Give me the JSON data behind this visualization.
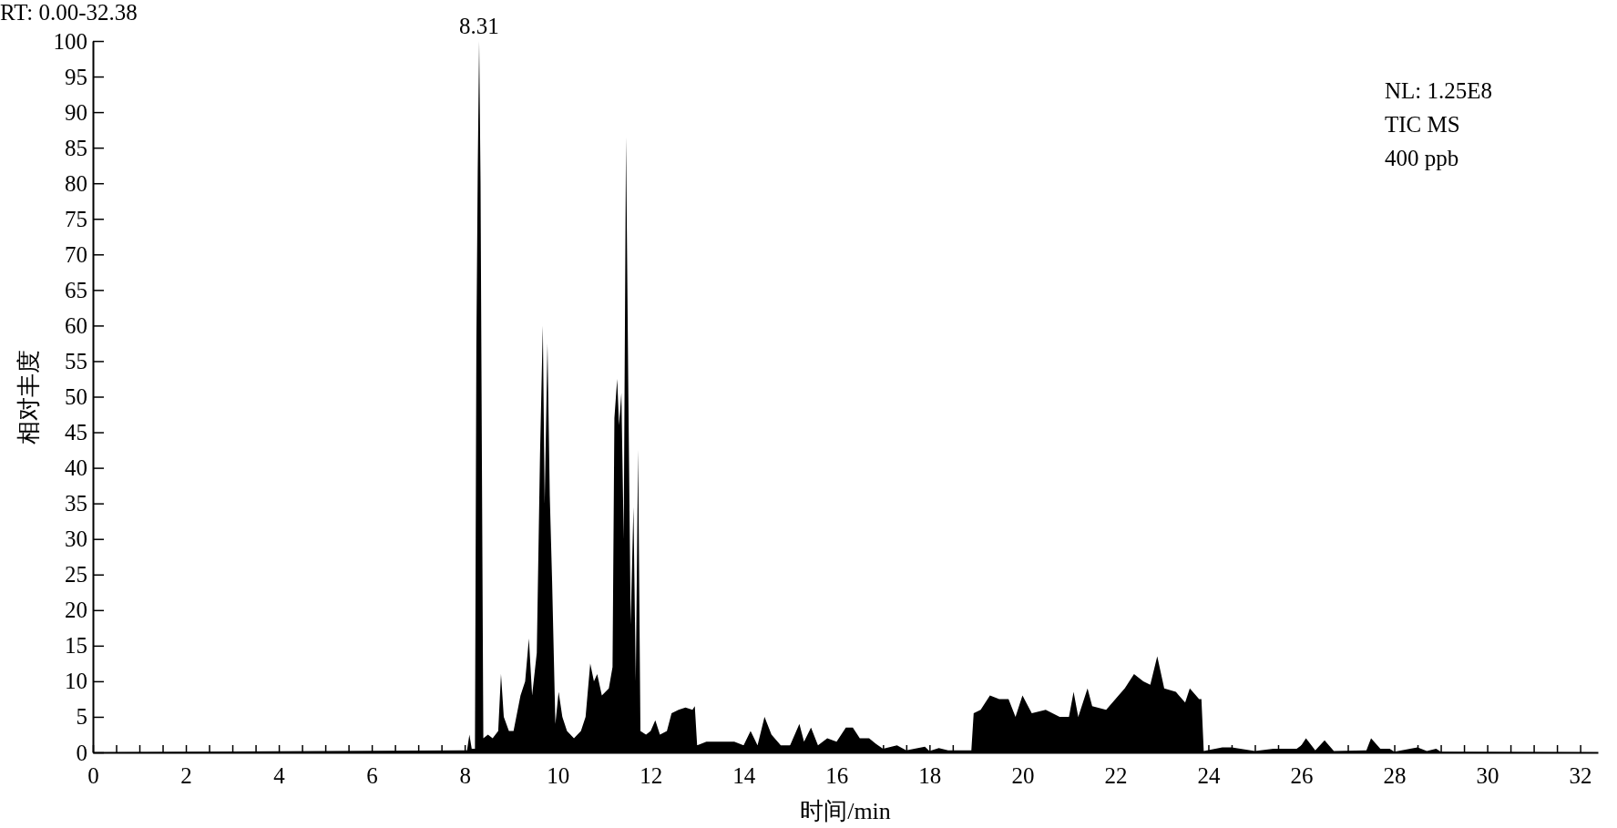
{
  "chart_data": {
    "type": "area",
    "title": "RT: 0.00-32.38",
    "xlabel": "时间/min",
    "ylabel": "相对丰度",
    "annotations": [
      {
        "text": "8.31",
        "x": 8.31,
        "y": 100
      },
      "NL: 1.25E8",
      "TIC  MS",
      "400 ppb"
    ],
    "xlim": [
      0,
      32.38
    ],
    "ylim": [
      0,
      100
    ],
    "xticks": [
      0,
      {
        "value": 0.5,
        "label": null
      },
      {
        "value": 1,
        "label": null
      },
      {
        "value": 1.5,
        "label": null
      },
      2,
      {
        "value": 2.5,
        "label": null
      },
      {
        "value": 3,
        "label": null
      },
      {
        "value": 3.5,
        "label": null
      },
      4,
      {
        "value": 4.5,
        "label": null
      },
      {
        "value": 5,
        "label": null
      },
      {
        "value": 5.5,
        "label": null
      },
      6,
      {
        "value": 6.5,
        "label": null
      },
      {
        "value": 7,
        "label": null
      },
      {
        "value": 7.5,
        "label": null
      },
      8,
      {
        "value": 8.5,
        "label": null
      },
      {
        "value": 9,
        "label": null
      },
      {
        "value": 9.5,
        "label": null
      },
      10,
      {
        "value": 10.5,
        "label": null
      },
      {
        "value": 11,
        "label": null
      },
      {
        "value": 11.5,
        "label": null
      },
      12,
      {
        "value": 12.5,
        "label": null
      },
      {
        "value": 13,
        "label": null
      },
      {
        "value": 13.5,
        "label": null
      },
      14,
      {
        "value": 14.5,
        "label": null
      },
      {
        "value": 15,
        "label": null
      },
      {
        "value": 15.5,
        "label": null
      },
      16,
      {
        "value": 16.5,
        "label": null
      },
      {
        "value": 17,
        "label": null
      },
      {
        "value": 17.5,
        "label": null
      },
      18,
      {
        "value": 18.5,
        "label": null
      },
      {
        "value": 19,
        "label": null
      },
      {
        "value": 19.5,
        "label": null
      },
      20,
      {
        "value": 20.5,
        "label": null
      },
      {
        "value": 21,
        "label": null
      },
      {
        "value": 21.5,
        "label": null
      },
      22,
      {
        "value": 22.5,
        "label": null
      },
      {
        "value": 23,
        "label": null
      },
      {
        "value": 23.5,
        "label": null
      },
      24,
      {
        "value": 24.5,
        "label": null
      },
      {
        "value": 25,
        "label": null
      },
      {
        "value": 25.5,
        "label": null
      },
      26,
      {
        "value": 26.5,
        "label": null
      },
      {
        "value": 27,
        "label": null
      },
      {
        "value": 27.5,
        "label": null
      },
      28,
      {
        "value": 28.5,
        "label": null
      },
      {
        "value": 29,
        "label": null
      },
      {
        "value": 29.5,
        "label": null
      },
      30,
      {
        "value": 30.5,
        "label": null
      },
      {
        "value": 31,
        "label": null
      },
      {
        "value": 31.5,
        "label": null
      },
      32
    ],
    "yticks": [
      0,
      5,
      10,
      15,
      20,
      25,
      30,
      35,
      40,
      45,
      50,
      55,
      60,
      65,
      70,
      75,
      80,
      85,
      90,
      95,
      100
    ],
    "series": [
      {
        "color": "#000000",
        "x": [
          0,
          7.9,
          8.05,
          8.1,
          8.15,
          8.22,
          8.25,
          8.28,
          8.31,
          8.34,
          8.37,
          8.4,
          8.5,
          8.6,
          8.72,
          8.78,
          8.84,
          8.95,
          9.05,
          9.2,
          9.3,
          9.38,
          9.45,
          9.55,
          9.62,
          9.68,
          9.72,
          9.78,
          9.83,
          9.88,
          9.95,
          10.02,
          10.1,
          10.2,
          10.35,
          10.5,
          10.6,
          10.7,
          10.78,
          10.85,
          10.95,
          11.1,
          11.18,
          11.22,
          11.28,
          11.32,
          11.37,
          11.42,
          11.47,
          11.52,
          11.57,
          11.63,
          11.68,
          11.73,
          11.78,
          11.9,
          12.0,
          12.1,
          12.2,
          12.35,
          12.45,
          12.6,
          12.75,
          12.9,
          12.95,
          13.0,
          13.2,
          13.5,
          13.8,
          14.0,
          14.15,
          14.3,
          14.45,
          14.6,
          14.8,
          15.0,
          15.2,
          15.3,
          15.45,
          15.6,
          15.8,
          16.0,
          16.2,
          16.35,
          16.5,
          16.7,
          16.85,
          17.0,
          17.3,
          17.5,
          17.9,
          18.0,
          18.2,
          18.4,
          18.9,
          18.95,
          19.1,
          19.3,
          19.5,
          19.7,
          19.85,
          20.0,
          20.2,
          20.5,
          20.8,
          21.0,
          21.1,
          21.2,
          21.4,
          21.5,
          21.8,
          22.0,
          22.2,
          22.4,
          22.6,
          22.75,
          22.9,
          23.05,
          23.3,
          23.5,
          23.6,
          23.8,
          23.85,
          23.9,
          24.3,
          24.5,
          25.0,
          25.4,
          25.9,
          26.0,
          26.1,
          26.3,
          26.5,
          26.7,
          27.4,
          27.5,
          27.7,
          27.9,
          28.0,
          28.5,
          28.7,
          28.9,
          29.0,
          32.38
        ],
        "values": [
          0,
          0.3,
          0.3,
          2.5,
          0.5,
          0.5,
          57,
          82,
          100,
          80,
          40,
          2,
          2.5,
          2,
          3,
          11,
          5,
          3,
          3,
          8,
          10,
          16,
          8,
          14,
          42,
          60,
          35,
          57.5,
          36,
          24,
          4,
          8.5,
          5,
          3,
          2,
          3,
          5,
          12.5,
          10,
          11,
          8,
          9,
          12,
          47,
          52.5,
          46,
          50.5,
          30,
          86.5,
          50.5,
          18,
          34.5,
          10,
          42.5,
          3,
          2.5,
          3,
          4.5,
          2.5,
          3,
          5.5,
          6,
          6.3,
          6,
          6.5,
          1,
          1.5,
          1.5,
          1.5,
          1,
          3,
          1,
          5,
          2.5,
          1,
          1,
          4,
          1.5,
          3.5,
          1,
          2,
          1.5,
          3.5,
          3.5,
          2,
          2,
          1.2,
          0.5,
          1,
          0.3,
          0.8,
          0.2,
          0.6,
          0.3,
          0.3,
          5.5,
          6,
          8,
          7.5,
          7.5,
          5,
          8,
          5.5,
          6,
          5,
          5,
          8.5,
          5,
          9,
          6.5,
          6,
          7.5,
          9,
          11,
          10,
          9.5,
          13.5,
          9,
          8.5,
          7,
          9,
          7.5,
          7.5,
          0.2,
          0.7,
          0.7,
          0.2,
          0.5,
          0.5,
          1,
          2,
          0.3,
          1.7,
          0.2,
          0.3,
          2,
          0.5,
          0.5,
          0.1,
          0.7,
          0.2,
          0.5,
          0.1,
          0
        ]
      }
    ]
  }
}
